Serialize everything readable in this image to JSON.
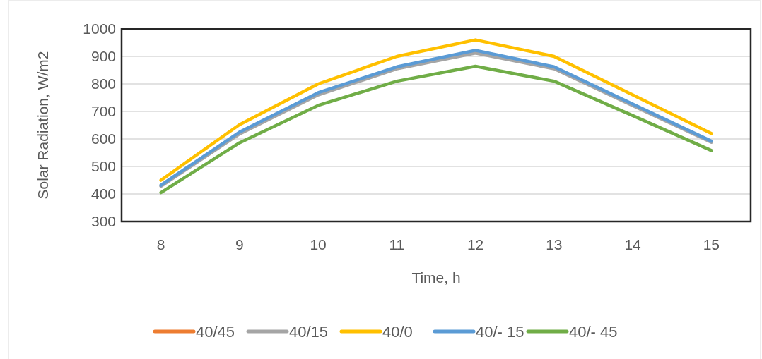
{
  "chart_data": {
    "type": "line",
    "xlabel": "Time, h",
    "ylabel": "Solar Radiation, W/m2",
    "categories": [
      "8",
      "9",
      "10",
      "11",
      "12",
      "13",
      "14",
      "15"
    ],
    "series": [
      {
        "name": "40/45",
        "color": "#ed7d31",
        "values": [
          null,
          null,
          null,
          null,
          null,
          null,
          null,
          null
        ]
      },
      {
        "name": "40/15",
        "color": "#a5a5a5",
        "values": [
          428,
          618,
          760,
          855,
          912,
          855,
          721,
          588
        ]
      },
      {
        "name": "40/0",
        "color": "#ffc000",
        "values": [
          450,
          652,
          800,
          900,
          960,
          900,
          760,
          620
        ]
      },
      {
        "name": "40/- 15",
        "color": "#5b9bd5",
        "values": [
          432,
          625,
          768,
          862,
          922,
          862,
          727,
          592
        ]
      },
      {
        "name": "40/- 45",
        "color": "#70ad47",
        "values": [
          405,
          586,
          722,
          810,
          864,
          810,
          685,
          558
        ]
      }
    ],
    "ylim": [
      300,
      1000
    ],
    "yticks": [
      300,
      400,
      500,
      600,
      700,
      800,
      900,
      1000
    ],
    "grid": "y",
    "legend": "bottom",
    "line_style": "solid"
  }
}
